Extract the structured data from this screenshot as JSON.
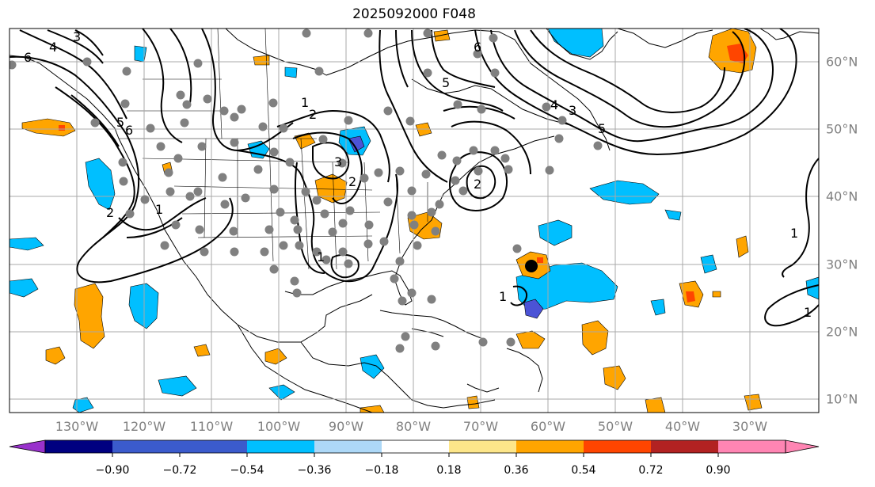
{
  "title": "2025092000 F048",
  "lon_labels": [
    "130°W",
    "120°W",
    "110°W",
    "100°W",
    "90°W",
    "80°W",
    "70°W",
    "60°W",
    "50°W",
    "40°W",
    "30°W"
  ],
  "lat_labels": [
    "60°N",
    "50°N",
    "40°N",
    "30°N",
    "20°N",
    "10°N"
  ],
  "colorbar": {
    "ticks": [
      "−0.90",
      "−0.72",
      "−0.54",
      "−0.36",
      "−0.18",
      "0.18",
      "0.36",
      "0.54",
      "0.72",
      "0.90"
    ],
    "colors": [
      "#9932cc",
      "#000080",
      "#3b5bcc",
      "#00bfff",
      "#add8f7",
      "#ffffff",
      "#fde68a",
      "#ffa500",
      "#ff4500",
      "#b22222",
      "#ff85b3"
    ]
  },
  "contour_labels": [
    "6",
    "4",
    "3",
    "5",
    "6",
    "2",
    "1",
    "1",
    "2",
    "5",
    "3",
    "6",
    "2",
    "5",
    "3",
    "4",
    "2",
    "1",
    "1",
    "1",
    "1"
  ],
  "colors": {
    "blue": "#00bfff",
    "orange": "#ffa500",
    "red_orange": "#ff4500",
    "purple": "#4b53d6",
    "station": "#808080"
  }
}
